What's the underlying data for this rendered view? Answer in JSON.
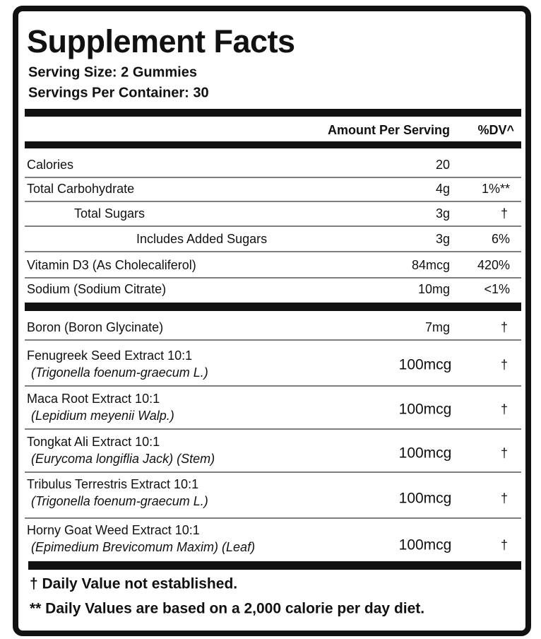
{
  "title": "Supplement Facts",
  "serving_size": "Serving Size: 2 Gummies",
  "servings_per_container": "Servings Per Container: 30",
  "header": {
    "amount": "Amount Per Serving",
    "dv": "%DV^"
  },
  "nutrients": [
    {
      "name": "Calories",
      "amount": "20",
      "dv": null
    },
    {
      "name": "Total Carbohydrate",
      "amount": "4g",
      "dv": "1%**"
    },
    {
      "name": "Total Sugars",
      "amount": "3g",
      "dv": "†"
    },
    {
      "name": "Includes Added Sugars",
      "amount": "3g",
      "dv": "6%"
    },
    {
      "name": "Vitamin D3 (As Cholecaliferol)",
      "amount": "84mcg",
      "dv": "420%"
    },
    {
      "name": "Sodium (Sodium Citrate)",
      "amount": "10mg",
      "dv": "<1%"
    }
  ],
  "ingredients": [
    {
      "name": "Boron (Boron Glycinate)",
      "latin": null,
      "amount": "7mg",
      "dv": "†"
    },
    {
      "name": "Fenugreek Seed Extract 10:1",
      "latin": "(Trigonella foenum-graecum L.)",
      "amount": "100mcg",
      "dv": "†"
    },
    {
      "name": "Maca Root Extract 10:1",
      "latin": "(Lepidium meyenii Walp.)",
      "amount": "100mcg",
      "dv": "†"
    },
    {
      "name": "Tongkat Ali Extract 10:1",
      "latin": "(Eurycoma longiflia Jack) (Stem)",
      "amount": "100mcg",
      "dv": "†"
    },
    {
      "name": "Tribulus Terrestris Extract 10:1",
      "latin": "(Trigonella foenum-graecum L.)",
      "amount": "100mcg",
      "dv": "†"
    },
    {
      "name": "Horny Goat Weed Extract 10:1",
      "latin": "(Epimedium Brevicomum Maxim) (Leaf)",
      "amount": "100mcg",
      "dv": "†"
    }
  ],
  "footnotes": [
    "† Daily Value not established.",
    "** Daily Values are based on a 2,000 calorie per day diet."
  ]
}
